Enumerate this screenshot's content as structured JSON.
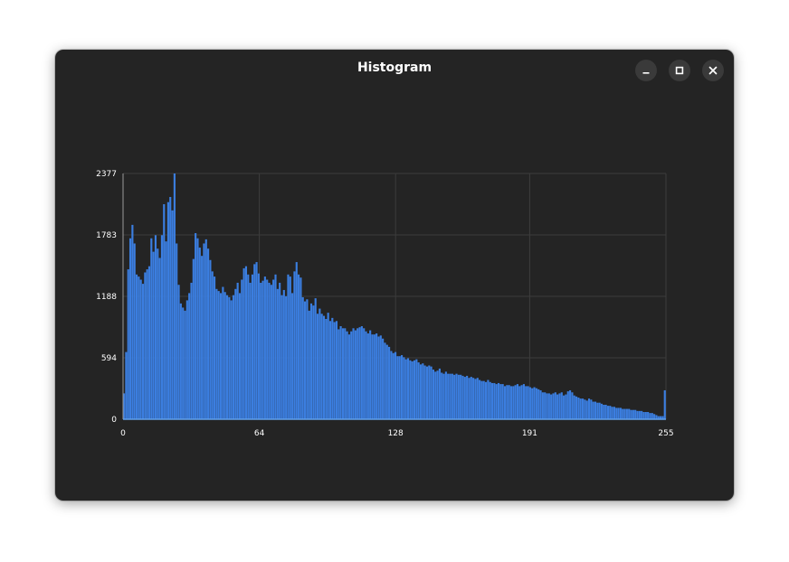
{
  "window": {
    "title": "Histogram",
    "controls": [
      "minimize-icon",
      "maximize-icon",
      "close-icon"
    ]
  },
  "colors": {
    "window_bg": "#242424",
    "bar": "#3b7ee0",
    "bar_edge": "#62a0ea",
    "grid": "#3c3c3c",
    "text": "#ffffff"
  },
  "chart_data": {
    "type": "bar",
    "title": "",
    "xlabel": "",
    "ylabel": "",
    "xlim": [
      0,
      255
    ],
    "ylim": [
      0,
      2377
    ],
    "x_ticks": [
      0,
      64,
      128,
      191,
      255
    ],
    "y_ticks": [
      0,
      594,
      1188,
      1783,
      2377
    ],
    "grid": true,
    "series": [
      {
        "values": [
          250,
          650,
          1450,
          1750,
          1880,
          1700,
          1400,
          1380,
          1350,
          1310,
          1420,
          1450,
          1480,
          1750,
          1620,
          1780,
          1650,
          1560,
          1780,
          2080,
          1720,
          2100,
          2150,
          2020,
          2377,
          1700,
          1300,
          1120,
          1080,
          1050,
          1150,
          1220,
          1320,
          1550,
          1800,
          1750,
          1660,
          1580,
          1700,
          1740,
          1650,
          1540,
          1430,
          1380,
          1260,
          1240,
          1220,
          1280,
          1230,
          1200,
          1180,
          1150,
          1200,
          1260,
          1320,
          1220,
          1350,
          1460,
          1480,
          1400,
          1320,
          1400,
          1500,
          1520,
          1410,
          1320,
          1340,
          1380,
          1350,
          1320,
          1300,
          1350,
          1400,
          1260,
          1320,
          1200,
          1250,
          1190,
          1400,
          1380,
          1220,
          1430,
          1520,
          1400,
          1370,
          1180,
          1140,
          1160,
          1050,
          1120,
          1100,
          1170,
          1020,
          1070,
          1020,
          1000,
          970,
          1030,
          950,
          980,
          940,
          950,
          870,
          900,
          880,
          880,
          850,
          820,
          850,
          880,
          860,
          880,
          890,
          900,
          880,
          850,
          830,
          860,
          820,
          820,
          830,
          800,
          810,
          780,
          740,
          720,
          700,
          660,
          640,
          650,
          610,
          610,
          620,
          600,
          580,
          590,
          570,
          560,
          570,
          580,
          550,
          530,
          540,
          520,
          510,
          520,
          510,
          480,
          460,
          470,
          490,
          450,
          440,
          460,
          440,
          440,
          440,
          430,
          440,
          430,
          430,
          420,
          410,
          420,
          400,
          410,
          400,
          390,
          400,
          380,
          370,
          370,
          360,
          380,
          360,
          350,
          350,
          340,
          350,
          340,
          340,
          320,
          330,
          330,
          320,
          320,
          330,
          340,
          320,
          330,
          340,
          320,
          320,
          310,
          300,
          310,
          300,
          290,
          280,
          260,
          260,
          250,
          250,
          240,
          250,
          260,
          240,
          250,
          260,
          230,
          240,
          270,
          280,
          260,
          230,
          220,
          210,
          200,
          200,
          190,
          180,
          200,
          190,
          170,
          170,
          160,
          160,
          150,
          140,
          140,
          130,
          130,
          120,
          120,
          110,
          110,
          110,
          100,
          100,
          100,
          100,
          90,
          90,
          90,
          80,
          80,
          80,
          70,
          70,
          70,
          60,
          60,
          50,
          40,
          30,
          30,
          30,
          280
        ]
      }
    ]
  }
}
